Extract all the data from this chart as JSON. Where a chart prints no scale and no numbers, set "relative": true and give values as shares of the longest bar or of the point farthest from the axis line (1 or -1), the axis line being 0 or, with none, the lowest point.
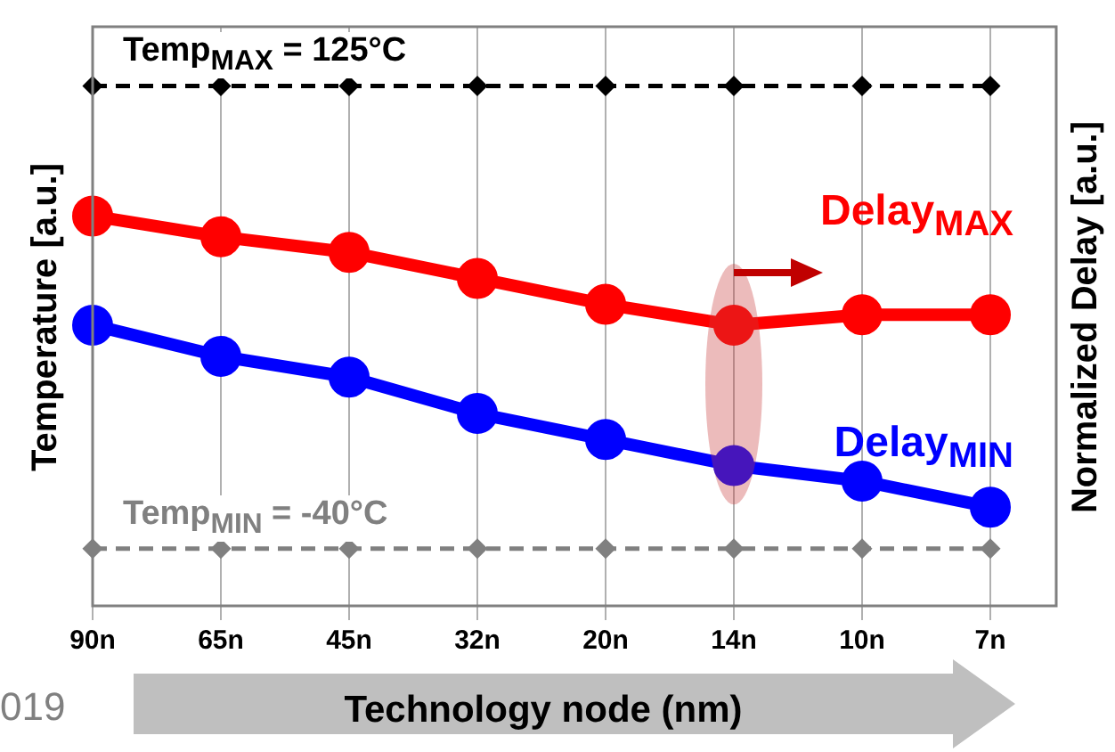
{
  "chart_data": {
    "type": "line",
    "relative": true,
    "ylabel": "Temperature [a.u.]",
    "y2label": "Normalized Delay [a.u.]",
    "xlabel": "Technology node (nm)",
    "categories": [
      "90n",
      "65n",
      "45n",
      "32n",
      "20n",
      "14n",
      "10n",
      "7n"
    ],
    "series": [
      {
        "name": "Temp$_{MAX}$ = 125°C",
        "color": "#000000",
        "line_style": "dashed",
        "marker": "diamond",
        "values": [
          1,
          1,
          1,
          1,
          1,
          1,
          1,
          1
        ]
      },
      {
        "name": "Temp$_{MIN}$ = -40°C",
        "color": "#808080",
        "line_style": "dashed",
        "marker": "diamond",
        "values": [
          0.11,
          0.11,
          0.11,
          0.11,
          0.11,
          0.11,
          0.11,
          0.11
        ]
      },
      {
        "name": "Delay$_{MAX}$",
        "color": "#ff0000",
        "line_style": "solid",
        "marker": "circle",
        "values": [
          0.75,
          0.71,
          0.68,
          0.63,
          0.58,
          0.54,
          0.56,
          0.56
        ]
      },
      {
        "name": "Delay$_{MIN}$",
        "color": "#0000ff",
        "line_style": "solid",
        "marker": "circle",
        "values": [
          0.54,
          0.48,
          0.44,
          0.37,
          0.32,
          0.27,
          0.24,
          0.19
        ]
      }
    ],
    "grid": "x",
    "tick_labels": "x",
    "annotations": [
      "019"
    ]
  }
}
